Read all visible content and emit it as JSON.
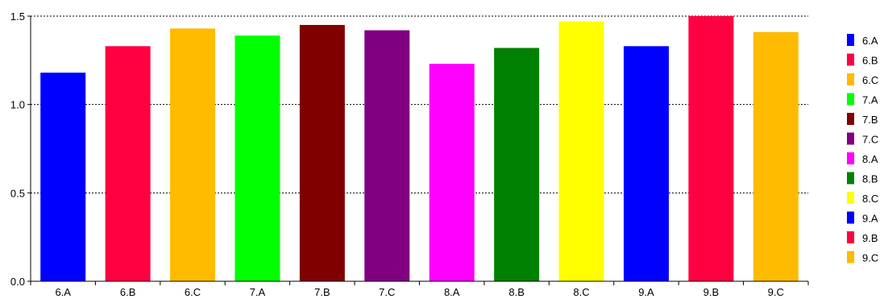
{
  "chart_data": {
    "type": "bar",
    "title": "",
    "xlabel": "",
    "ylabel": "",
    "ylim": [
      0,
      1.5
    ],
    "yticks": [
      {
        "value": 0,
        "label": "0.0"
      },
      {
        "value": 0.5,
        "label": "0.5"
      },
      {
        "value": 1.0,
        "label": "1.0"
      },
      {
        "value": 1.5,
        "label": "1.5"
      }
    ],
    "grid": "horizontal-dotted",
    "legend_position": "right",
    "categories": [
      "6.A",
      "6.B",
      "6.C",
      "7.A",
      "7.B",
      "7.C",
      "8.A",
      "8.B",
      "8.C",
      "9.A",
      "9.B",
      "9.C"
    ],
    "values": [
      1.18,
      1.33,
      1.43,
      1.39,
      1.45,
      1.42,
      1.23,
      1.32,
      1.47,
      1.33,
      1.5,
      1.41
    ],
    "colors": [
      "#0000ff",
      "#ff0040",
      "#ffbb00",
      "#00ff00",
      "#800000",
      "#800080",
      "#ff00ff",
      "#008000",
      "#ffff00",
      "#0000ff",
      "#ff0040",
      "#ffbb00"
    ],
    "legend": [
      "6.A",
      "6.B",
      "6.C",
      "7.A",
      "7.B",
      "7.C",
      "8.A",
      "8.B",
      "8.C",
      "9.A",
      "9.B",
      "9.C"
    ]
  }
}
